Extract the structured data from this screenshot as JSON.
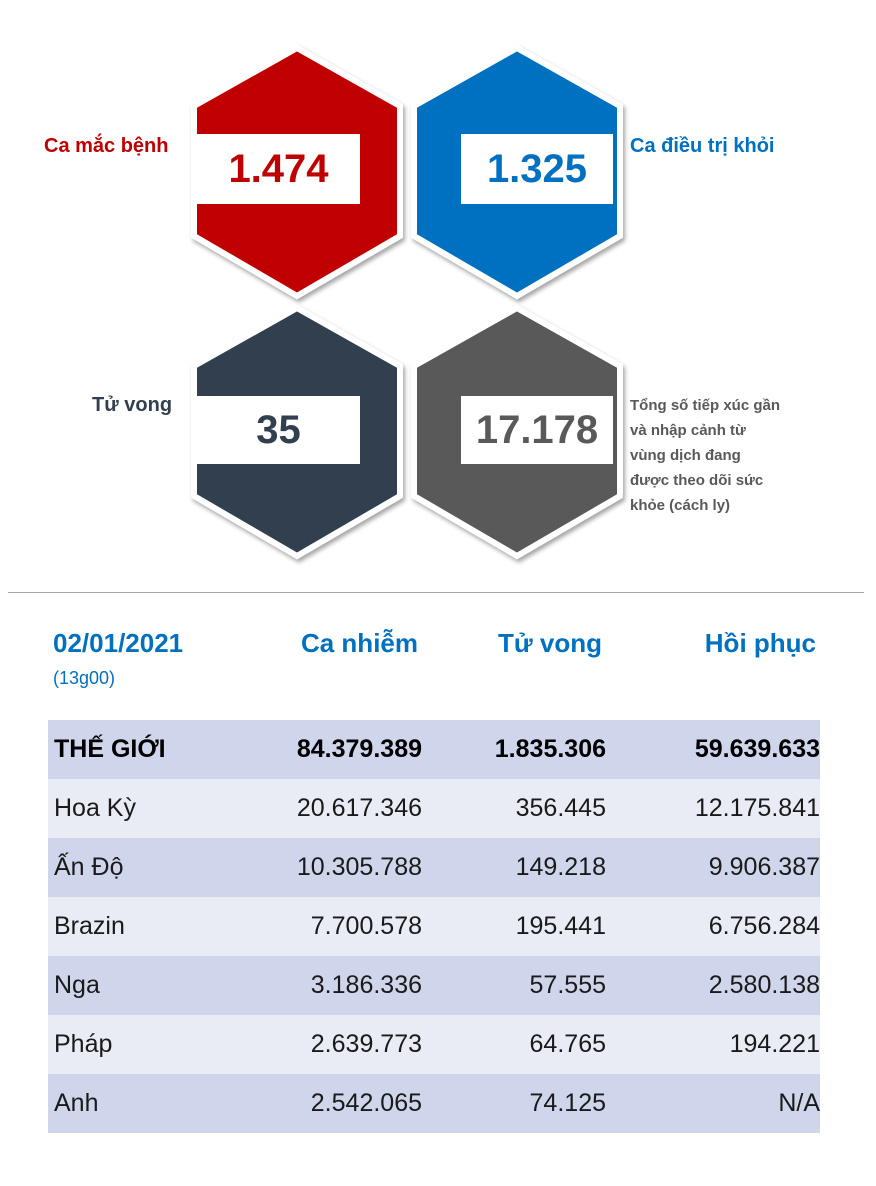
{
  "stats": {
    "cases": {
      "label": "Ca mắc bệnh",
      "value": "1.474",
      "color": "#c00000"
    },
    "recovered": {
      "label": "Ca điều trị khỏi",
      "value": "1.325",
      "color": "#0070c0"
    },
    "deaths": {
      "label": "Tử vong",
      "value": "35",
      "color": "#323f4f"
    },
    "monitored": {
      "label_lines": [
        "Tổng số tiếp xúc gần",
        "và nhập cảnh từ",
        "vùng dịch đang",
        "được theo dõi sức",
        "khỏe (cách ly)"
      ],
      "value": "17.178",
      "color": "#595959"
    }
  },
  "table": {
    "date": "02/01/2021",
    "time": "(13g00)",
    "headers": {
      "cases": "Ca nhiễm",
      "deaths": "Tử vong",
      "recovered": "Hồi phục"
    },
    "rows": [
      {
        "name": "THẾ GIỚI",
        "cases": "84.379.389",
        "deaths": "1.835.306",
        "recovered": "59.639.633"
      },
      {
        "name": "Hoa Kỳ",
        "cases": "20.617.346",
        "deaths": "356.445",
        "recovered": "12.175.841"
      },
      {
        "name": "Ấn Độ",
        "cases": "10.305.788",
        "deaths": "149.218",
        "recovered": "9.906.387"
      },
      {
        "name": "Brazin",
        "cases": "7.700.578",
        "deaths": "195.441",
        "recovered": "6.756.284"
      },
      {
        "name": "Nga",
        "cases": "3.186.336",
        "deaths": "57.555",
        "recovered": "2.580.138"
      },
      {
        "name": "Pháp",
        "cases": "2.639.773",
        "deaths": "64.765",
        "recovered": "194.221"
      },
      {
        "name": "Anh",
        "cases": "2.542.065",
        "deaths": "74.125",
        "recovered": "N/A"
      }
    ]
  }
}
